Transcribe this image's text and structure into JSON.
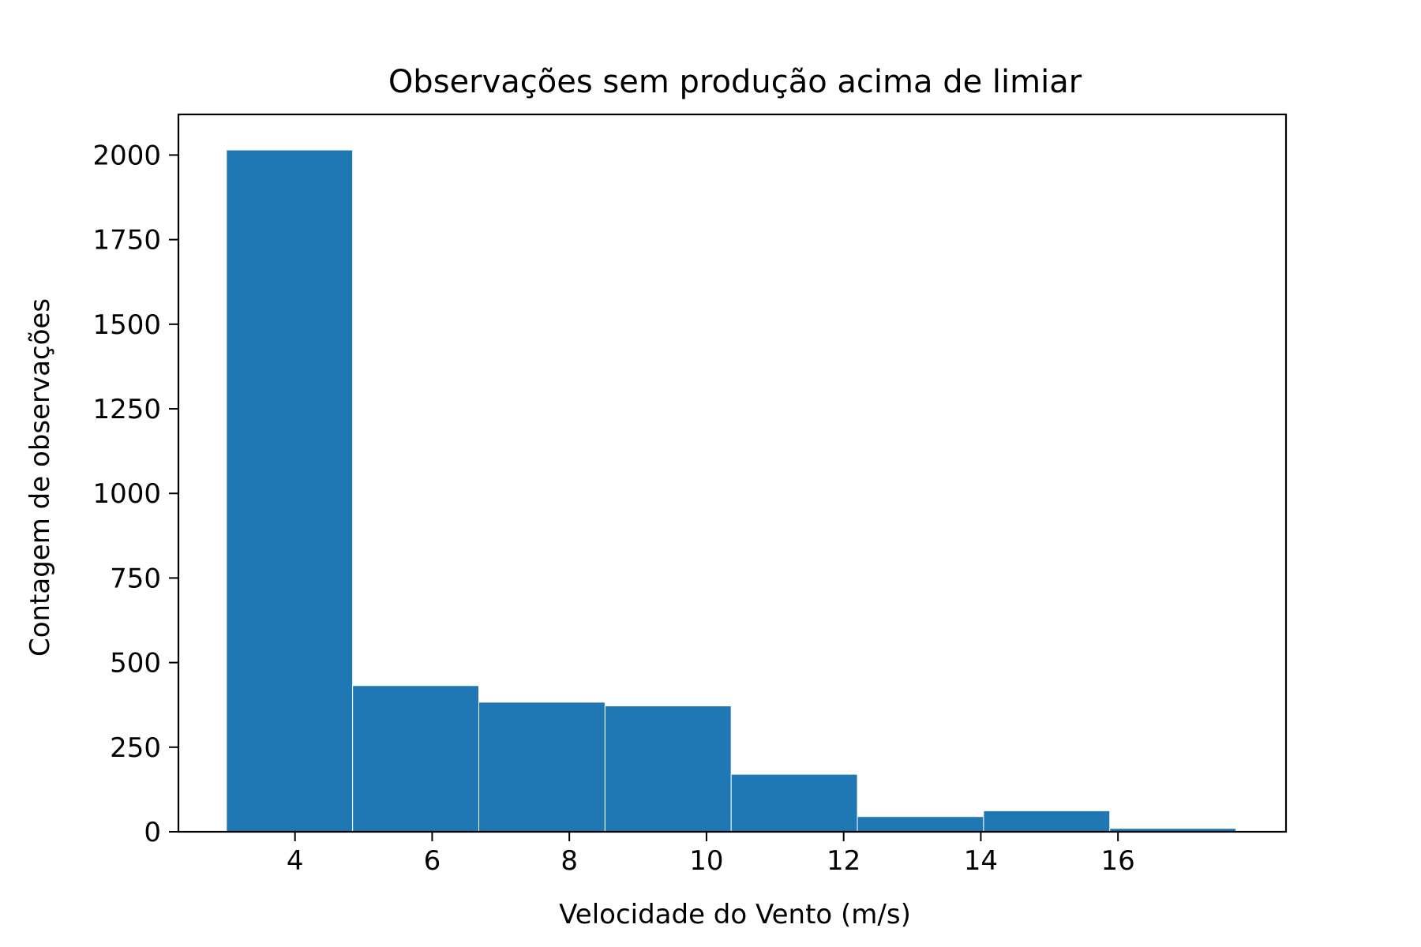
{
  "chart_data": {
    "type": "bar",
    "title": "Observações sem produção acima de limiar",
    "xlabel": "Velocidade do Vento (m/s)",
    "ylabel": "Contagem de observações",
    "bin_edges": [
      3.0,
      4.84,
      6.68,
      8.52,
      10.36,
      12.2,
      14.04,
      15.88,
      17.72
    ],
    "values": [
      2015,
      432,
      383,
      372,
      170,
      45,
      62,
      10
    ],
    "xlim": [
      2.3,
      18.45
    ],
    "ylim": [
      0,
      2120
    ],
    "xticks": [
      4,
      6,
      8,
      10,
      12,
      14,
      16
    ],
    "yticks": [
      0,
      250,
      500,
      750,
      1000,
      1250,
      1500,
      1750,
      2000
    ],
    "bar_color": "#1f77b4",
    "grid": false
  }
}
